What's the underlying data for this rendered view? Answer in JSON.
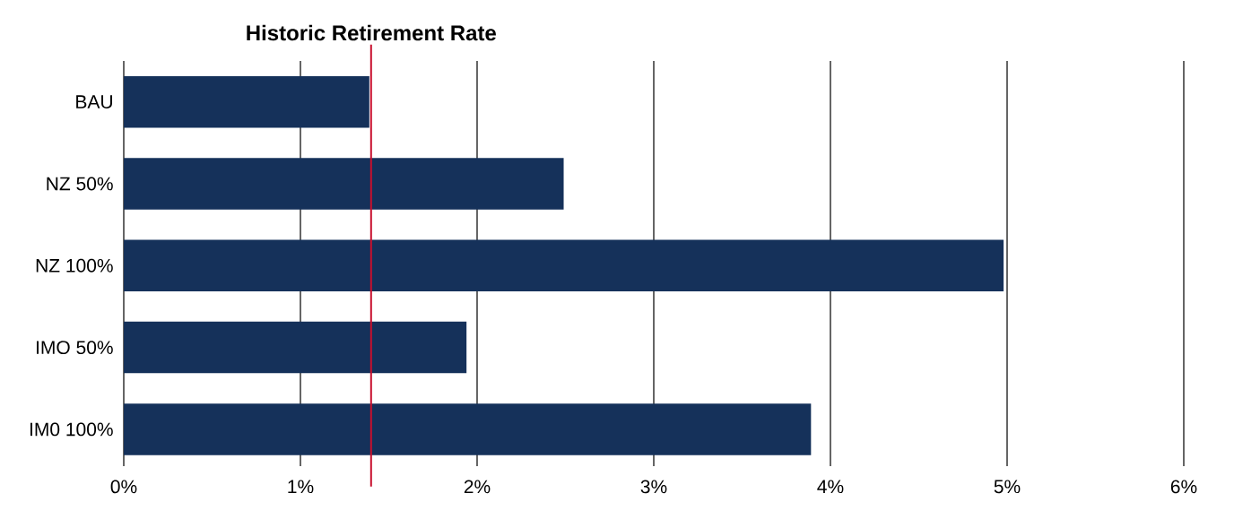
{
  "chart_data": {
    "type": "bar",
    "orientation": "horizontal",
    "categories": [
      "BAU",
      "NZ 50%",
      "NZ 100%",
      "IMO 50%",
      "IM0 100%"
    ],
    "values": [
      1.39,
      2.49,
      4.98,
      1.94,
      3.89
    ],
    "color": "#15315a",
    "xlim": [
      0,
      6
    ],
    "xticks": [
      {
        "value": 0,
        "label": "0%"
      },
      {
        "value": 1,
        "label": "1%"
      },
      {
        "value": 2,
        "label": "2%"
      },
      {
        "value": 3,
        "label": "3%"
      },
      {
        "value": 4,
        "label": "4%"
      },
      {
        "value": 5,
        "label": "5%"
      },
      {
        "value": 6,
        "label": "6%"
      }
    ],
    "grid": "x",
    "ref_lines": [
      {
        "axis": "x",
        "value": 1.4,
        "label": "Historic Retirement Rate",
        "color": "#c8102e"
      }
    ]
  }
}
